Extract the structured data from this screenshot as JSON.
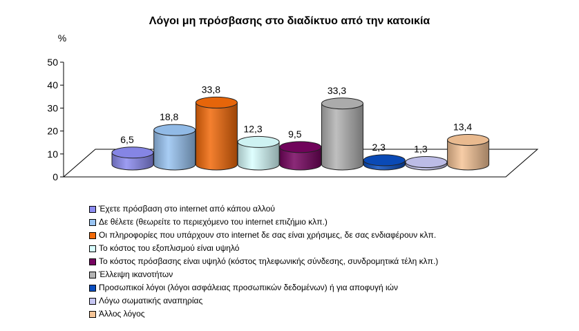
{
  "chart_data": {
    "type": "bar",
    "title": "Λόγοι μη πρόσβασης στο διαδίκτυο από την κατοικία",
    "ylabel": "%",
    "ylim": [
      0,
      50
    ],
    "yticks": [
      "0",
      "10",
      "20",
      "30",
      "40",
      "50"
    ],
    "grid": false,
    "legend_position": "bottom",
    "series": [
      {
        "label": "Έχετε πρόσβαση στο internet από κάπου αλλού",
        "value": 6.5,
        "value_label": "6,5",
        "color": "#8c8cf0"
      },
      {
        "label": "Δε θέλετε (θεωρείτε το περιεχόμενο του internet επιζήμιο κλπ.)",
        "value": 18.8,
        "value_label": "18,8",
        "color": "#99c4f2"
      },
      {
        "label": "Οι πληροφορίες που υπάρχουν στο internet δε σας είναι χρήσιμες, δε σας ενδιαφέρουν κλπ.",
        "value": 33.8,
        "value_label": "33,8",
        "color": "#f26a0a"
      },
      {
        "label": "Το κόστος του εξοπλισμού είναι υψηλό",
        "value": 12.3,
        "value_label": "12,3",
        "color": "#d9ffff"
      },
      {
        "label": "Το κόστος πρόσβασης είναι υψηλό (κόστος τηλεφωνικής σύνδεσης, συνδρομητικά τέλη κλπ.)",
        "value": 9.5,
        "value_label": "9,5",
        "color": "#760460"
      },
      {
        "label": "Έλλειψη ικανοτήτων",
        "value": 33.3,
        "value_label": "33,3",
        "color": "#b4b4b4"
      },
      {
        "label": "Προσωπικοί λόγοι (λόγοι ασφάλειας προσωπικών δεδομένων) ή για αποφυγή ιών",
        "value": 2.3,
        "value_label": "2,3",
        "color": "#0a4ec0"
      },
      {
        "label": "Λόγω σωματικής αναπηρίας",
        "value": 1.3,
        "value_label": "1,3",
        "color": "#c6c6f2"
      },
      {
        "label": "Άλλος λόγος",
        "value": 13.4,
        "value_label": "13,4",
        "color": "#f5c496"
      }
    ]
  }
}
